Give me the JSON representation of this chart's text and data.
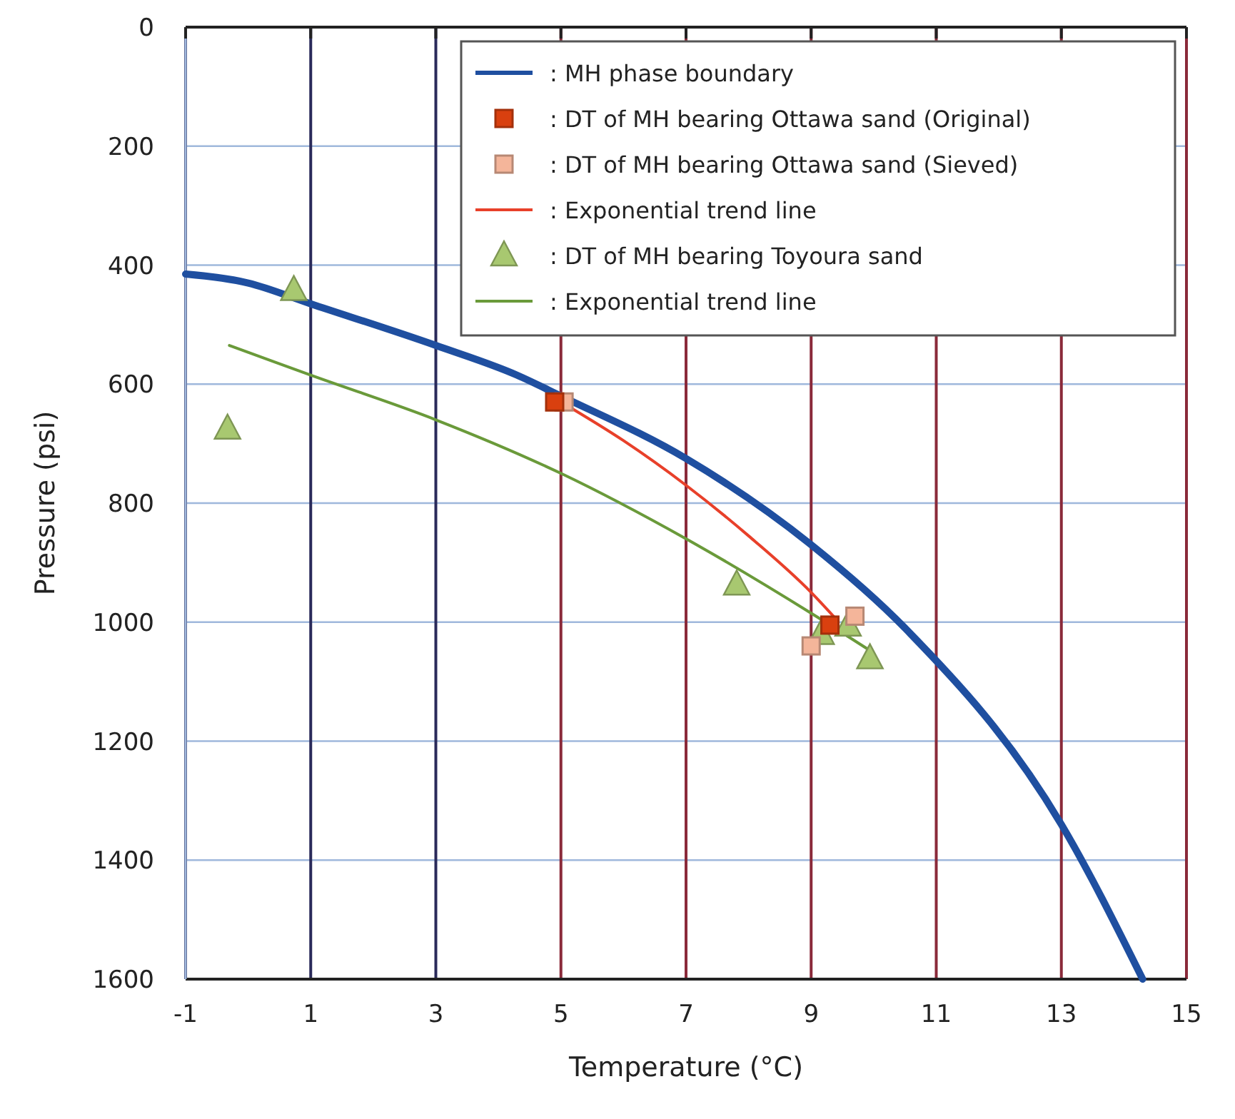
{
  "chart_data": {
    "type": "scatter",
    "xlabel": "Temperature (°C)",
    "ylabel": "Pressure (psi)",
    "xlim": [
      -1,
      15
    ],
    "xticks": [
      -1,
      1,
      3,
      5,
      7,
      9,
      11,
      13,
      15
    ],
    "ylim": [
      1600,
      0
    ],
    "yticks": [
      0,
      200,
      400,
      600,
      800,
      1000,
      1200,
      1400,
      1600
    ],
    "grid": true,
    "legend": "top right",
    "series": [
      {
        "name": ": MH phase boundary",
        "type": "line",
        "color": "#1f4fa0",
        "marker": "none",
        "line_style": "solid",
        "x": [
          -1,
          0,
          1,
          3,
          4.3,
          5,
          7,
          9,
          10.5,
          13,
          14.3
        ],
        "values": [
          415,
          430,
          465,
          535,
          585,
          620,
          725,
          870,
          1010,
          1340,
          1600
        ]
      },
      {
        "name": ": DT of MH bearing Ottawa sand (Original)",
        "color": "#d9400f",
        "marker": "square",
        "x": [
          4.9,
          9.3
        ],
        "values": [
          630,
          1005
        ]
      },
      {
        "name": ": DT of MH bearing Ottawa sand (Sieved)",
        "color": "#f4b59a",
        "marker": "square",
        "x": [
          5.05,
          9.0,
          9.7
        ],
        "values": [
          630,
          1040,
          990
        ]
      },
      {
        "name": ": Exponential trend line",
        "type": "line",
        "color": "#e8402a",
        "marker": "none",
        "line_style": "solid",
        "x": [
          5,
          6,
          7,
          8,
          9,
          9.4
        ],
        "values": [
          630,
          695,
          770,
          855,
          950,
          995
        ]
      },
      {
        "name": ": DT of MH bearing Toyoura sand",
        "color": "#a8c870",
        "marker": "triangle",
        "x": [
          0.73,
          -0.33,
          7.81,
          9.16,
          9.59,
          9.94
        ],
        "values": [
          442,
          675,
          937,
          1020,
          1006,
          1061
        ]
      },
      {
        "name": ": Exponential trend line",
        "type": "line",
        "color": "#6a9a3a",
        "marker": "none",
        "line_style": "solid",
        "x": [
          -0.3,
          1,
          3,
          5,
          7,
          9,
          9.9
        ],
        "values": [
          535,
          585,
          660,
          750,
          860,
          985,
          1045
        ]
      }
    ]
  }
}
